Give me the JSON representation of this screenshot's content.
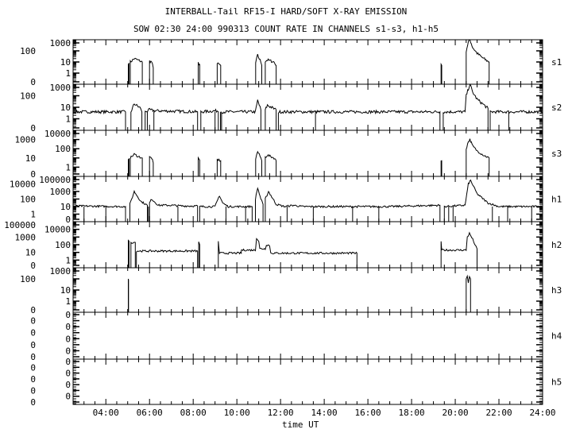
{
  "chart_data": {
    "type": "line",
    "title": "INTERBALL-Tail RF15-I HARD/SOFT X-RAY EMISSION",
    "subtitle": "SOW 02:30 24:00 990313  COUNT RATE IN CHANNELS s1-s3, h1-h5",
    "xlabel": "time UT",
    "xlim": [
      2.5,
      24
    ],
    "x_ticks": [
      "04:00",
      "06:00",
      "08:00",
      "10:00",
      "12:00",
      "14:00",
      "16:00",
      "18:00",
      "20:00",
      "22:00",
      "24:00"
    ],
    "y_scale": "log",
    "grid": false,
    "line_color": "#000000",
    "panels": [
      {
        "name": "s1",
        "ymax": 1000,
        "y_ticks": [
          "0",
          "1",
          "10",
          "100",
          "1000"
        ],
        "segments": [
          [
            [
              5.03,
              8
            ],
            [
              5.06,
              8
            ]
          ],
          [
            [
              5.12,
              10
            ],
            [
              5.3,
              20
            ],
            [
              5.5,
              14
            ],
            [
              5.67,
              10
            ]
          ],
          [
            [
              6.0,
              12
            ],
            [
              6.1,
              10
            ],
            [
              6.17,
              3
            ]
          ],
          [
            [
              8.23,
              8
            ],
            [
              8.3,
              6
            ]
          ],
          [
            [
              9.1,
              7
            ],
            [
              9.26,
              5
            ]
          ],
          [
            [
              10.86,
              8
            ],
            [
              10.95,
              40
            ],
            [
              11.1,
              10
            ],
            [
              11.14,
              5
            ]
          ],
          [
            [
              11.3,
              12
            ],
            [
              11.4,
              15
            ],
            [
              11.7,
              10
            ],
            [
              11.8,
              5
            ]
          ],
          [
            [
              19.35,
              5
            ],
            [
              19.38,
              5
            ]
          ],
          [
            [
              20.5,
              100
            ],
            [
              20.6,
              600
            ],
            [
              20.67,
              1000
            ],
            [
              20.8,
              200
            ],
            [
              21.0,
              60
            ],
            [
              21.3,
              20
            ],
            [
              21.55,
              10
            ]
          ]
        ],
        "dropouts": []
      },
      {
        "name": "s2",
        "ymax": 1000,
        "y_ticks": [
          "0",
          "1",
          "10",
          "100",
          "1000"
        ],
        "segments": [
          [
            [
              2.3,
              4
            ],
            [
              4.9,
              4
            ]
          ],
          [
            [
              5.15,
              4
            ],
            [
              5.3,
              20
            ],
            [
              5.6,
              8
            ],
            [
              5.65,
              4
            ]
          ],
          [
            [
              5.8,
              4
            ],
            [
              6.0,
              6
            ],
            [
              6.2,
              5
            ],
            [
              8.2,
              4
            ]
          ],
          [
            [
              8.35,
              4
            ],
            [
              9.1,
              5
            ],
            [
              9.15,
              4
            ]
          ],
          [
            [
              9.3,
              4
            ],
            [
              10.85,
              4
            ],
            [
              10.95,
              40
            ],
            [
              11.1,
              6
            ]
          ],
          [
            [
              11.3,
              6
            ],
            [
              11.4,
              15
            ],
            [
              11.8,
              6
            ]
          ],
          [
            [
              11.9,
              4
            ],
            [
              19.3,
              4
            ]
          ],
          [
            [
              19.45,
              4
            ],
            [
              20.45,
              4
            ],
            [
              20.5,
              100
            ],
            [
              20.67,
              1000
            ],
            [
              20.8,
              200
            ],
            [
              21.0,
              50
            ],
            [
              21.5,
              8
            ]
          ],
          [
            [
              21.6,
              4
            ],
            [
              24,
              4
            ]
          ]
        ],
        "dropouts": [
          5.9,
          6.2,
          9.0,
          9.25,
          13.6,
          22.45
        ]
      },
      {
        "name": "s3",
        "ymax": 10000,
        "y_ticks": [
          "0",
          "1",
          "10",
          "100",
          "1000",
          "10000"
        ],
        "segments": [
          [
            [
              5.03,
              8
            ],
            [
              5.06,
              8
            ]
          ],
          [
            [
              5.12,
              10
            ],
            [
              5.3,
              25
            ],
            [
              5.5,
              14
            ],
            [
              5.67,
              10
            ]
          ],
          [
            [
              6.0,
              12
            ],
            [
              6.1,
              10
            ],
            [
              6.17,
              3
            ]
          ],
          [
            [
              8.23,
              8
            ],
            [
              8.3,
              6
            ]
          ],
          [
            [
              9.1,
              7
            ],
            [
              9.26,
              5
            ]
          ],
          [
            [
              10.86,
              8
            ],
            [
              10.95,
              50
            ],
            [
              11.1,
              10
            ],
            [
              11.14,
              5
            ]
          ],
          [
            [
              11.3,
              12
            ],
            [
              11.4,
              20
            ],
            [
              11.7,
              10
            ],
            [
              11.8,
              5
            ]
          ],
          [
            [
              19.35,
              5
            ],
            [
              19.38,
              5
            ]
          ],
          [
            [
              20.5,
              100
            ],
            [
              20.6,
              600
            ],
            [
              20.67,
              1000
            ],
            [
              20.8,
              200
            ],
            [
              21.0,
              60
            ],
            [
              21.3,
              20
            ],
            [
              21.55,
              10
            ]
          ]
        ],
        "dropouts": []
      },
      {
        "name": "h1",
        "ymax": 100000,
        "y_ticks": [
          "0",
          "1",
          "10",
          "100",
          "1000",
          "10000",
          "100000"
        ],
        "segments": [
          [
            [
              2.3,
              10
            ],
            [
              2.5,
              12
            ],
            [
              4.9,
              10
            ]
          ],
          [
            [
              5.1,
              20
            ],
            [
              5.3,
              1000
            ],
            [
              5.6,
              50
            ],
            [
              5.9,
              15
            ]
          ],
          [
            [
              6.0,
              30
            ],
            [
              6.1,
              100
            ],
            [
              6.4,
              15
            ],
            [
              7.0,
              15
            ],
            [
              7.5,
              12
            ],
            [
              8.2,
              12
            ]
          ],
          [
            [
              8.3,
              10
            ],
            [
              9.0,
              10
            ],
            [
              9.2,
              300
            ],
            [
              9.35,
              30
            ],
            [
              9.6,
              10
            ],
            [
              10.7,
              10
            ]
          ],
          [
            [
              10.85,
              100
            ],
            [
              10.95,
              3000
            ],
            [
              11.1,
              100
            ],
            [
              11.2,
              20
            ]
          ],
          [
            [
              11.3,
              100
            ],
            [
              11.45,
              1000
            ],
            [
              11.8,
              20
            ],
            [
              12.2,
              10
            ],
            [
              12.6,
              15
            ],
            [
              13.0,
              10
            ],
            [
              17.0,
              10
            ],
            [
              19.3,
              15
            ]
          ],
          [
            [
              19.5,
              10
            ],
            [
              20.45,
              15
            ],
            [
              20.6,
              10000
            ],
            [
              20.7,
              30000
            ],
            [
              21.0,
              500
            ],
            [
              21.5,
              30
            ],
            [
              22.0,
              10
            ],
            [
              24,
              10
            ]
          ]
        ],
        "dropouts": [
          3.0,
          4.0,
          5.95,
          7.3,
          9.5,
          10.4,
          12.3,
          13.5,
          15.3,
          16.5,
          19.7,
          19.9,
          21.7,
          22.4,
          23.5
        ]
      },
      {
        "name": "h2",
        "ymax": 100000,
        "y_ticks": [
          "0",
          "1",
          "10",
          "100",
          "1000",
          "10000",
          "100000"
        ],
        "segments": [
          [
            [
              5.03,
              300
            ],
            [
              5.06,
              300
            ]
          ],
          [
            [
              5.15,
              200
            ],
            [
              5.35,
              200
            ]
          ],
          [
            [
              5.4,
              15
            ],
            [
              8.2,
              15
            ]
          ],
          [
            [
              8.25,
              200
            ],
            [
              8.3,
              100
            ]
          ],
          [
            [
              9.15,
              300
            ],
            [
              9.2,
              8
            ],
            [
              10.2,
              8
            ],
            [
              10.2,
              20
            ],
            [
              10.85,
              20
            ],
            [
              10.9,
              800
            ],
            [
              11.0,
              300
            ],
            [
              11.05,
              30
            ],
            [
              11.3,
              30
            ],
            [
              11.35,
              100
            ],
            [
              11.5,
              80
            ],
            [
              11.55,
              8
            ],
            [
              15.5,
              8
            ]
          ],
          [
            [
              19.35,
              300
            ],
            [
              19.38,
              20
            ],
            [
              20.5,
              20
            ],
            [
              20.55,
              1000
            ],
            [
              20.65,
              3000
            ],
            [
              20.8,
              500
            ],
            [
              20.95,
              50
            ],
            [
              21.0,
              30
            ]
          ]
        ],
        "dropouts": []
      },
      {
        "name": "h3",
        "ymax": 1000,
        "y_ticks": [
          "0",
          "1",
          "10",
          "100",
          "1000"
        ],
        "segments": [
          [
            [
              5.03,
              80
            ],
            [
              5.04,
              80
            ]
          ],
          [
            [
              20.5,
              100
            ],
            [
              20.55,
              150
            ],
            [
              20.6,
              50
            ],
            [
              20.65,
              150
            ],
            [
              20.7,
              100
            ]
          ]
        ],
        "dropouts": []
      },
      {
        "name": "h4",
        "ymax": 1,
        "y_ticks": [
          "0",
          "0",
          "0",
          "0",
          "0",
          "0",
          "0",
          "0"
        ],
        "segments": [],
        "dropouts": []
      },
      {
        "name": "h5",
        "ymax": 1,
        "y_ticks": [
          "0",
          "0",
          "0",
          "0",
          "0",
          "0",
          "0",
          "0"
        ],
        "segments": [],
        "dropouts": []
      }
    ]
  }
}
